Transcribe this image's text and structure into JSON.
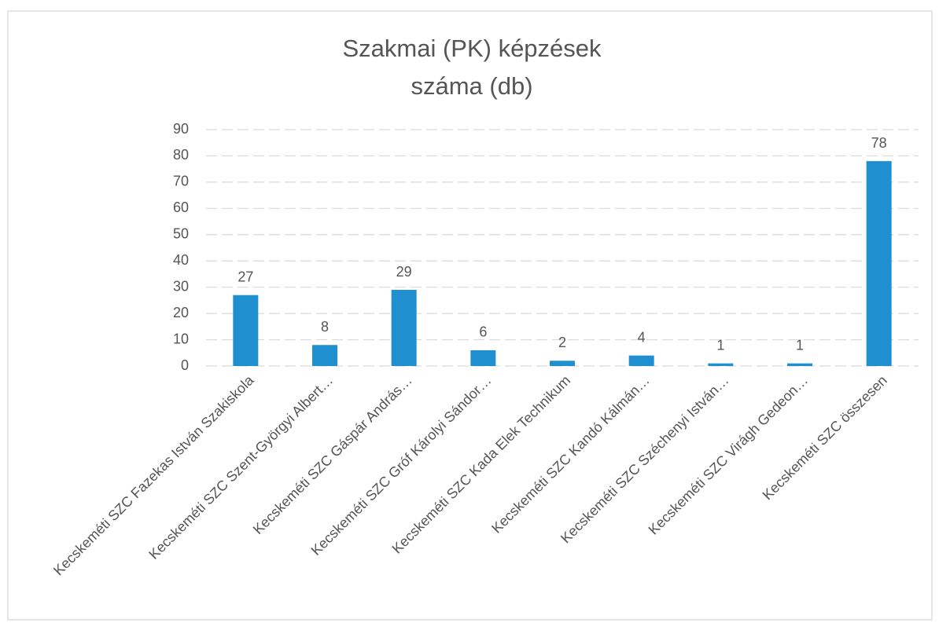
{
  "chart_data": {
    "type": "bar",
    "title": "Szakmai (PK) képzések száma (db)",
    "categories": [
      "Kecskeméti SZC Fazekas István Szakiskola",
      "Kecskeméti SZC Szent-Györgyi Albert…",
      "Kecskeméti SZC Gáspár András…",
      "Kecskeméti SZC Gróf Károlyi Sándor…",
      "Kecskeméti SZC Kada Elek Technikum",
      "Kecskeméti SZC Kandó Kálmán…",
      "Kecskeméti SZC Széchenyi István…",
      "Kecskeméti SZC Virágh Gedeon…",
      "Kecskeméti SZC összesen"
    ],
    "values": [
      27,
      8,
      29,
      6,
      2,
      4,
      1,
      1,
      78
    ],
    "color": "#1f8fcf",
    "ylim": [
      0,
      90
    ],
    "yticks": [
      0,
      10,
      20,
      30,
      40,
      50,
      60,
      70,
      80,
      90
    ],
    "grid": true
  }
}
